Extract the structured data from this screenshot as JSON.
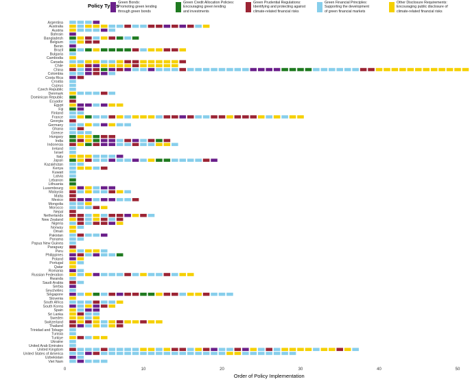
{
  "chart_data": {
    "type": "heatmap",
    "title": "",
    "xlabel": "Order of Policy Implementation",
    "ylabel": "",
    "xlim": [
      0,
      52
    ],
    "x_ticks": [
      0,
      10,
      20,
      30,
      40,
      50
    ],
    "legend": {
      "title": "Policy Types",
      "position": "top",
      "entries": [
        {
          "code": "G",
          "name": "Green Bonds:",
          "description": "Promoting green lending\nthrough green bonds",
          "color": "#6a1f8a"
        },
        {
          "code": "C",
          "name": "Green Credit Allocation Policies:",
          "description": "Encouraging green lending\nand investments",
          "color": "#1f7a20"
        },
        {
          "code": "P",
          "name": "Green Prudential Regulations:",
          "description": "Identifying and protecting against\nclimate-related financial risks",
          "color": "#9b2434"
        },
        {
          "code": "F",
          "name": "Green Financial Principles:",
          "description": "Supporting the development\nof green financial markets",
          "color": "#87ceeb"
        },
        {
          "code": "D",
          "name": "Other Disclosure Requirements:",
          "description": "Encouraging public disclosure of\nclimate-related financial risks",
          "color": "#f5d000"
        }
      ]
    },
    "countries": [
      {
        "name": "Argentina",
        "seq": "FFFG"
      },
      {
        "name": "Australia",
        "seq": "DFDDDFFPFFPPGPGPFD"
      },
      {
        "name": "Austria",
        "seq": "DFFFGF"
      },
      {
        "name": "Bahrain",
        "seq": "G"
      },
      {
        "name": "Bangladesh",
        "seq": "CDPFDPCFC"
      },
      {
        "name": "Belgium",
        "seq": "FDPP"
      },
      {
        "name": "Benin",
        "seq": "G"
      },
      {
        "name": "Brazil",
        "seq": "CFCDCCCCPFDDPPD"
      },
      {
        "name": "Bulgaria",
        "seq": "F"
      },
      {
        "name": "Cambodia",
        "seq": "D"
      },
      {
        "name": "Canada",
        "seq": "FFDDFFDPPDDDDDP"
      },
      {
        "name": "Chile",
        "seq": "DDPGDDDDPDDDDD"
      },
      {
        "name": "China",
        "seq": "PFGPCGPGFFGFFFPFFFFFFFFGGGGCCCCFFFFFFPPDDDDDDDDDDDDDD"
      },
      {
        "name": "Colombia",
        "seq": "FFGPGF"
      },
      {
        "name": "Costa Rica",
        "seq": "GP"
      },
      {
        "name": "Croatia",
        "seq": "F"
      },
      {
        "name": "Cyprus",
        "seq": "F"
      },
      {
        "name": "Czech Republic",
        "seq": "F"
      },
      {
        "name": "Denmark",
        "seq": "DFFFPF"
      },
      {
        "name": "Dominican Republic",
        "seq": "C"
      },
      {
        "name": "Ecuador",
        "seq": "P"
      },
      {
        "name": "Egypt",
        "seq": "DGGFGDD"
      },
      {
        "name": "Fiji",
        "seq": "CG"
      },
      {
        "name": "Finland",
        "seq": "FF"
      },
      {
        "name": "France",
        "seq": "FDCFFPDFDDDFPPGPFFPPDPPPDFDFDD"
      },
      {
        "name": "Georgia",
        "seq": "P"
      },
      {
        "name": "Germany",
        "seq": "FFDFGDFF"
      },
      {
        "name": "Ghana",
        "seq": "FP"
      },
      {
        "name": "Greece",
        "seq": "FFF"
      },
      {
        "name": "Hungary",
        "seq": "CDDCPP"
      },
      {
        "name": "India",
        "seq": "CPDCGGFPGFPCP"
      },
      {
        "name": "Indonesia",
        "seq": "PDCPGGFFPFFDDF"
      },
      {
        "name": "Ireland",
        "seq": "F"
      },
      {
        "name": "Israel",
        "seq": "F"
      },
      {
        "name": "Italy",
        "seq": "DDDFFFG"
      },
      {
        "name": "Japan",
        "seq": "CDPFFGFFGFDCCFFFFPG"
      },
      {
        "name": "Kazakhstan",
        "seq": "FF"
      },
      {
        "name": "Kenya",
        "seq": "FDDFP"
      },
      {
        "name": "Kuwait",
        "seq": "F"
      },
      {
        "name": "Latvia",
        "seq": "F"
      },
      {
        "name": "Lebanon",
        "seq": "C"
      },
      {
        "name": "Lithuania",
        "seq": "C"
      },
      {
        "name": "Luxembourg",
        "seq": "DGDFGG"
      },
      {
        "name": "Malaysia",
        "seq": "PFDFFPDF"
      },
      {
        "name": "Malta",
        "seq": "P"
      },
      {
        "name": "Mexico",
        "seq": "PGGFGGFFP"
      },
      {
        "name": "Mongolia",
        "seq": "FFD"
      },
      {
        "name": "Morocco",
        "seq": "FFFPD"
      },
      {
        "name": "Nepal",
        "seq": "P"
      },
      {
        "name": "Netherlands",
        "seq": "PPFDFPPGDPF"
      },
      {
        "name": "New Zealand",
        "seq": "DPFDPFP"
      },
      {
        "name": "Nigeria",
        "seq": "FPFPPGD"
      },
      {
        "name": "Norway",
        "seq": "DF"
      },
      {
        "name": "Oman",
        "seq": "D"
      },
      {
        "name": "Pakistan",
        "seq": "FPFFG"
      },
      {
        "name": "Panama",
        "seq": "FF"
      },
      {
        "name": "Papua New Guinea",
        "seq": "F"
      },
      {
        "name": "Paraguay",
        "seq": "P"
      },
      {
        "name": "Peru",
        "seq": "DFDDF"
      },
      {
        "name": "Philippines",
        "seq": "GPFGFFC"
      },
      {
        "name": "Poland",
        "seq": "GD"
      },
      {
        "name": "Portugal",
        "seq": "DF"
      },
      {
        "name": "Qatar",
        "seq": "D"
      },
      {
        "name": "Romania",
        "seq": "GF"
      },
      {
        "name": "Russian Federation",
        "seq": "DFDGFFFPFDFFPFDD"
      },
      {
        "name": "Rwanda",
        "seq": "F"
      },
      {
        "name": "Saudi Arabia",
        "seq": "PF"
      },
      {
        "name": "Serbia",
        "seq": "G"
      },
      {
        "name": "Seychelles",
        "seq": "F"
      },
      {
        "name": "Singapore",
        "seq": "GFDCFPGPPCCDPPFDDPFFF"
      },
      {
        "name": "Slovenia",
        "seq": "D"
      },
      {
        "name": "South Africa",
        "seq": "FFFPFFD"
      },
      {
        "name": "South Korea",
        "seq": "GFDGPD"
      },
      {
        "name": "Spain",
        "seq": "DFGG"
      },
      {
        "name": "Sri Lanka",
        "seq": "DPFF"
      },
      {
        "name": "Sweden",
        "seq": "DDFD"
      },
      {
        "name": "Switzerland",
        "seq": "PDPDFDPDDPDD"
      },
      {
        "name": "Thailand",
        "seq": "PGFDFDP"
      },
      {
        "name": "Trinidad and Tobago",
        "seq": "F"
      },
      {
        "name": "Tunisia",
        "seq": "F"
      },
      {
        "name": "Turkiye",
        "seq": "DPFDD"
      },
      {
        "name": "Ukraine",
        "seq": "F"
      },
      {
        "name": "United Arab Emirates",
        "seq": "F"
      },
      {
        "name": "United Kingdom",
        "seq": "PFFFPFFFFDDFDPPFDPGFFPGDFPFDDDDFDDPDF"
      },
      {
        "name": "United States of America",
        "seq": "FFGPFFFFFFFFFFFFFFFFDDFFFFFFF"
      },
      {
        "name": "Uzbekistan",
        "seq": "GF"
      },
      {
        "name": "Viet Nam",
        "seq": "FGFFF"
      }
    ]
  }
}
